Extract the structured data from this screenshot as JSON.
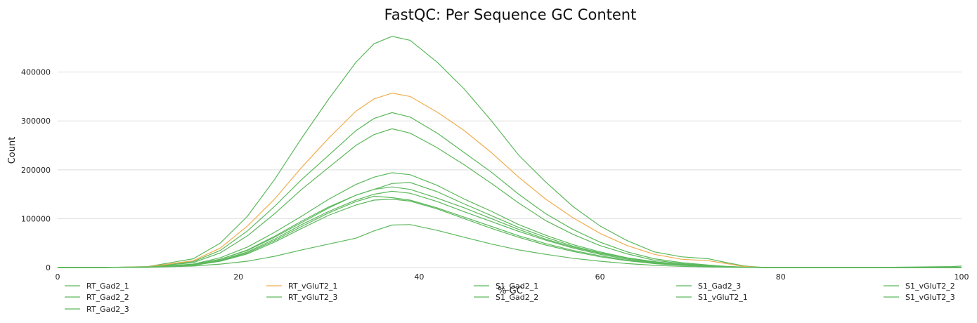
{
  "chart_data": {
    "type": "line",
    "title": "FastQC: Per Sequence GC Content",
    "xlabel": "% GC",
    "ylabel": "Count",
    "xlim": [
      0,
      100
    ],
    "ylim": [
      0,
      490000
    ],
    "xticks": [
      0,
      20,
      40,
      60,
      80,
      100
    ],
    "yticks": [
      0,
      100000,
      200000,
      300000,
      400000
    ],
    "grid": true,
    "legend_position": "bottom",
    "x": [
      0,
      5,
      10,
      15,
      18,
      21,
      24,
      27,
      30,
      33,
      35,
      37,
      39,
      42,
      45,
      48,
      51,
      54,
      57,
      60,
      63,
      66,
      69,
      72,
      74,
      76,
      78,
      80,
      90,
      99,
      100
    ],
    "series": [
      {
        "name": "RT_Gad2_1",
        "color": "#5cb85c",
        "values": [
          0,
          0,
          2000,
          18000,
          50000,
          105000,
          180000,
          265000,
          345000,
          420000,
          458000,
          473000,
          465000,
          420000,
          365000,
          300000,
          230000,
          175000,
          125000,
          85000,
          55000,
          32000,
          22000,
          18000,
          10000,
          3000,
          500,
          0,
          0,
          2000,
          3000
        ]
      },
      {
        "name": "RT_Gad2_2",
        "color": "#5cb85c",
        "values": [
          0,
          0,
          1500,
          12000,
          35000,
          75000,
          125000,
          180000,
          230000,
          280000,
          305000,
          317000,
          308000,
          275000,
          235000,
          195000,
          150000,
          110000,
          78000,
          52000,
          32000,
          18000,
          10000,
          5000,
          2500,
          800,
          100,
          0,
          0,
          0,
          0
        ]
      },
      {
        "name": "RT_Gad2_3",
        "color": "#5cb85c",
        "values": [
          0,
          0,
          1200,
          10000,
          30000,
          65000,
          110000,
          160000,
          205000,
          250000,
          272000,
          284000,
          275000,
          245000,
          210000,
          172000,
          132000,
          96000,
          68000,
          45000,
          28000,
          15000,
          8000,
          4000,
          2000,
          600,
          100,
          0,
          0,
          0,
          0
        ]
      },
      {
        "name": "RT_vGluT2_1",
        "color": "#f0ad4e",
        "values": [
          0,
          0,
          1500,
          14000,
          40000,
          85000,
          140000,
          205000,
          265000,
          320000,
          345000,
          357000,
          350000,
          318000,
          280000,
          235000,
          185000,
          140000,
          102000,
          70000,
          45000,
          27000,
          17000,
          14000,
          8000,
          2000,
          300,
          0,
          0,
          0,
          0
        ]
      },
      {
        "name": "RT_vGluT2_3",
        "color": "#5cb85c",
        "values": [
          0,
          0,
          800,
          6000,
          17000,
          35000,
          62000,
          92000,
          122000,
          148000,
          160000,
          165000,
          160000,
          142000,
          122000,
          100000,
          78000,
          58000,
          42000,
          29000,
          19000,
          11000,
          6000,
          3000,
          1500,
          400,
          50,
          0,
          0,
          0,
          0
        ]
      },
      {
        "name": "S1_Gad2_1",
        "color": "#5cb85c",
        "values": [
          0,
          0,
          700,
          5000,
          14000,
          30000,
          55000,
          84000,
          112000,
          135000,
          146000,
          143000,
          138000,
          122000,
          103000,
          84000,
          65000,
          49000,
          35000,
          24000,
          15000,
          9000,
          5000,
          2500,
          1200,
          300,
          50,
          0,
          0,
          0,
          0
        ]
      },
      {
        "name": "S1_Gad2_2",
        "color": "#5cb85c",
        "values": [
          0,
          0,
          600,
          4500,
          13000,
          28000,
          52000,
          80000,
          107000,
          128000,
          138000,
          140000,
          136000,
          120000,
          100000,
          80000,
          62000,
          46000,
          33000,
          22000,
          14000,
          8000,
          4500,
          2200,
          1000,
          300,
          50,
          0,
          0,
          0,
          0
        ]
      },
      {
        "name": "S1_Gad2_3",
        "color": "#5cb85c",
        "values": [
          0,
          0,
          500,
          3000,
          7000,
          13000,
          23000,
          36000,
          48000,
          60000,
          75000,
          87000,
          88000,
          76000,
          62000,
          48000,
          36000,
          27000,
          19000,
          13000,
          8000,
          4500,
          2500,
          1200,
          600,
          150,
          20,
          0,
          0,
          0,
          0
        ]
      },
      {
        "name": "S1_vGluT2_1",
        "color": "#5cb85c",
        "values": [
          0,
          0,
          900,
          7000,
          20000,
          42000,
          72000,
          105000,
          140000,
          170000,
          185000,
          194000,
          190000,
          168000,
          140000,
          115000,
          88000,
          66000,
          47000,
          32000,
          20000,
          12000,
          6500,
          3200,
          1600,
          400,
          50,
          0,
          0,
          0,
          0
        ]
      },
      {
        "name": "S1_vGluT2_2",
        "color": "#5cb85c",
        "values": [
          0,
          0,
          800,
          6000,
          17000,
          36000,
          64000,
          95000,
          124000,
          148000,
          160000,
          172000,
          174000,
          155000,
          130000,
          106000,
          82000,
          62000,
          44000,
          30000,
          19000,
          11000,
          6000,
          3000,
          1500,
          400,
          50,
          0,
          0,
          0,
          0
        ]
      },
      {
        "name": "S1_vGluT2_3",
        "color": "#5cb85c",
        "values": [
          0,
          0,
          700,
          5500,
          15000,
          32000,
          58000,
          88000,
          115000,
          138000,
          150000,
          156000,
          152000,
          135000,
          114000,
          94000,
          74000,
          56000,
          40000,
          27000,
          17000,
          10000,
          5500,
          2700,
          1300,
          350,
          50,
          0,
          0,
          0,
          0
        ]
      }
    ]
  }
}
